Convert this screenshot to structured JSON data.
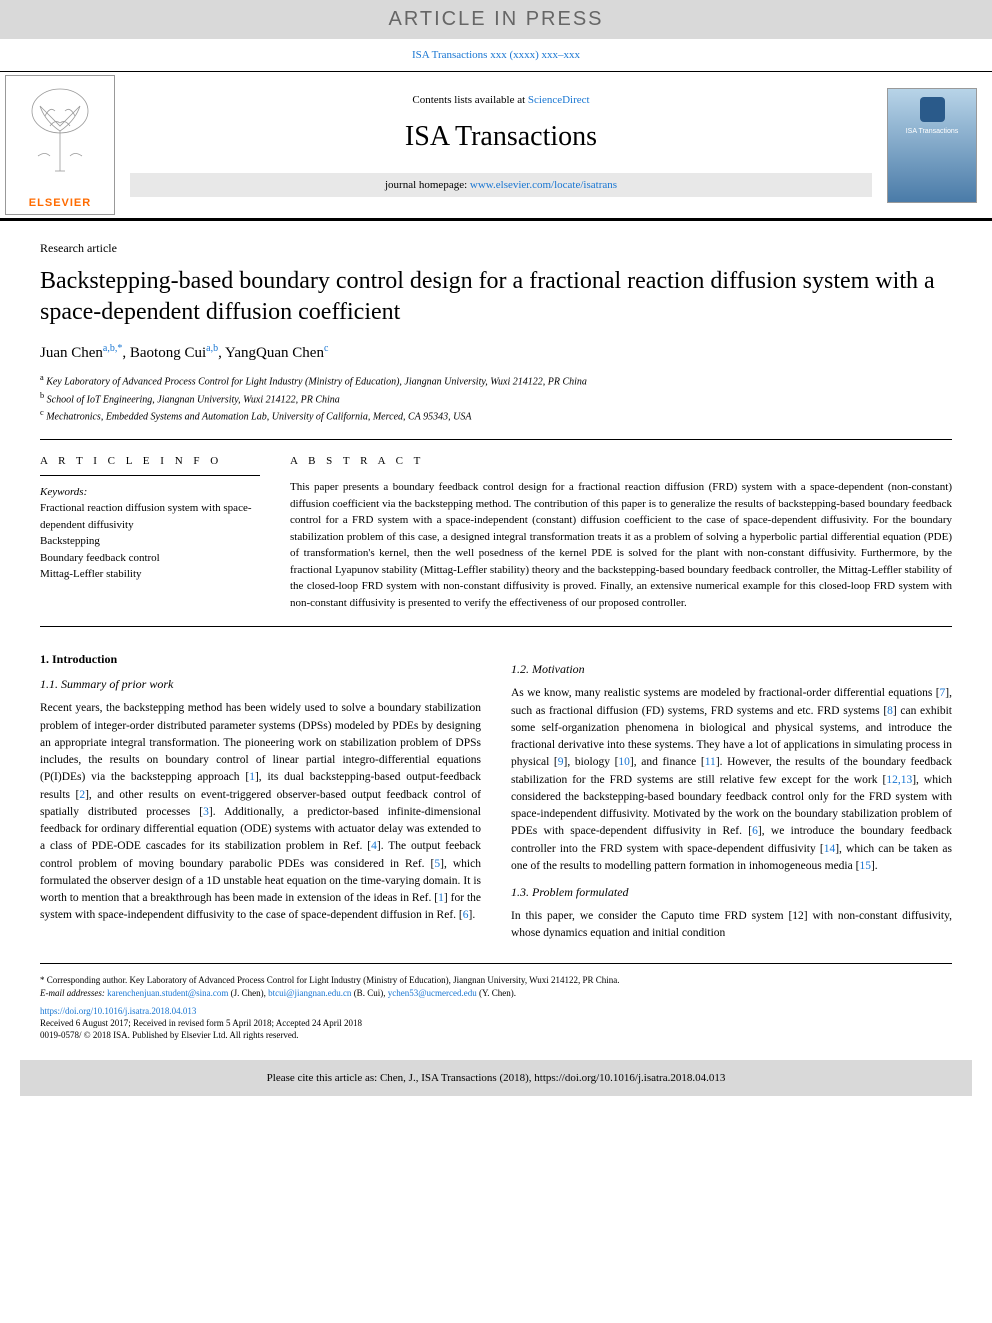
{
  "banner": {
    "text": "ARTICLE IN PRESS",
    "background": "#d9d9d9"
  },
  "journal_ref": "ISA Transactions xxx (xxxx) xxx–xxx",
  "header": {
    "contents_prefix": "Contents lists available at ",
    "contents_link": "ScienceDirect",
    "journal_name": "ISA Transactions",
    "homepage_prefix": "journal homepage: ",
    "homepage_link": "www.elsevier.com/locate/isatrans",
    "publisher_name": "ELSEVIER",
    "cover_title": "ISA Transactions"
  },
  "article_type": "Research article",
  "title": "Backstepping-based boundary control design for a fractional reaction diffusion system with a space-dependent diffusion coefficient",
  "authors": [
    {
      "name": "Juan Chen",
      "affil": "a,b,*"
    },
    {
      "name": "Baotong Cui",
      "affil": "a,b"
    },
    {
      "name": "YangQuan Chen",
      "affil": "c"
    }
  ],
  "affiliations": {
    "a": "Key Laboratory of Advanced Process Control for Light Industry (Ministry of Education), Jiangnan University, Wuxi 214122, PR China",
    "b": "School of IoT Engineering, Jiangnan University, Wuxi 214122, PR China",
    "c": "Mechatronics, Embedded Systems and Automation Lab, University of California, Merced, CA 95343, USA"
  },
  "info": {
    "heading": "A R T I C L E  I N F O",
    "keywords_label": "Keywords:",
    "keywords": [
      "Fractional reaction diffusion system with space-dependent diffusivity",
      "Backstepping",
      "Boundary feedback control",
      "Mittag-Leffler stability"
    ]
  },
  "abstract": {
    "heading": "A B S T R A C T",
    "text": "This paper presents a boundary feedback control design for a fractional reaction diffusion (FRD) system with a space-dependent (non-constant) diffusion coefficient via the backstepping method. The contribution of this paper is to generalize the results of backstepping-based boundary feedback control for a FRD system with a space-independent (constant) diffusion coefficient to the case of space-dependent diffusivity. For the boundary stabilization problem of this case, a designed integral transformation treats it as a problem of solving a hyperbolic partial differential equation (PDE) of transformation's kernel, then the well posedness of the kernel PDE is solved for the plant with non-constant diffusivity. Furthermore, by the fractional Lyapunov stability (Mittag-Leffler stability) theory and the backstepping-based boundary feedback controller, the Mittag-Leffler stability of the closed-loop FRD system with non-constant diffusivity is proved. Finally, an extensive numerical example for this closed-loop FRD system with non-constant diffusivity is presented to verify the effectiveness of our proposed controller."
  },
  "sections": {
    "s1_heading": "1. Introduction",
    "s11_heading": "1.1. Summary of prior work",
    "s11_text": "Recent years, the backstepping method has been widely used to solve a boundary stabilization problem of integer-order distributed parameter systems (DPSs) modeled by PDEs by designing an appropriate integral transformation. The pioneering work on stabilization problem of DPSs includes, the results on boundary control of linear partial integro-differential equations (P(I)DEs) via the backstepping approach [1], its dual backstepping-based output-feedback results [2], and other results on event-triggered observer-based output feedback control of spatially distributed processes [3]. Additionally, a predictor-based infinite-dimensional feedback for ordinary differential equation (ODE) systems with actuator delay was extended to a class of PDE-ODE cascades for its stabilization problem in Ref. [4]. The output feeback control problem of moving boundary parabolic PDEs was considered in Ref. [5], which formulated the observer design of a 1D unstable heat equation on the time-varying domain. It is worth to mention that a breakthrough has been made in extension of the ideas in Ref. [1] for the system with space-independent diffusivity to the case of space-dependent diffusion in Ref. [6].",
    "s12_heading": "1.2. Motivation",
    "s12_text": "As we know, many realistic systems are modeled by fractional-order differential equations [7], such as fractional diffusion (FD) systems, FRD systems and etc. FRD systems [8] can exhibit some self-organization phenomena in biological and physical systems, and introduce the fractional derivative into these systems. They have a lot of applications in simulating process in physical [9], biology [10], and finance [11]. However, the results of the boundary feedback stabilization for the FRD systems are still relative few except for the work [12,13], which considered the backstepping-based boundary feedback control only for the FRD system with space-independent diffusivity. Motivated by the work on the boundary stabilization problem of PDEs with space-dependent diffusivity in Ref. [6], we introduce the boundary feedback controller into the FRD system with space-dependent diffusivity [14], which can be taken as one of the results to modelling pattern formation in inhomogeneous media [15].",
    "s13_heading": "1.3. Problem formulated",
    "s13_text": "In this paper, we consider the Caputo time FRD system [12] with non-constant diffusivity, whose dynamics equation and initial condition"
  },
  "footnote": {
    "corresp": "* Corresponding author. Key Laboratory of Advanced Process Control for Light Industry (Ministry of Education), Jiangnan University, Wuxi 214122, PR China.",
    "email_label": "E-mail addresses: ",
    "emails": [
      {
        "addr": "karenchenjuan.student@sina.com",
        "who": " (J. Chen), "
      },
      {
        "addr": "btcui@jiangnan.edu.cn",
        "who": " (B. Cui), "
      },
      {
        "addr": "ychen53@ucmerced.edu",
        "who": " (Y. Chen)."
      }
    ]
  },
  "doi": "https://doi.org/10.1016/j.isatra.2018.04.013",
  "received": "Received 6 August 2017; Received in revised form 5 April 2018; Accepted 24 April 2018",
  "copyright": "0019-0578/ © 2018 ISA. Published by Elsevier Ltd. All rights reserved.",
  "cite_box": "Please cite this article as: Chen, J., ISA Transactions (2018), https://doi.org/10.1016/j.isatra.2018.04.013",
  "colors": {
    "link": "#1976d2",
    "banner_bg": "#d9d9d9",
    "elsevier_orange": "#ff6b00"
  }
}
